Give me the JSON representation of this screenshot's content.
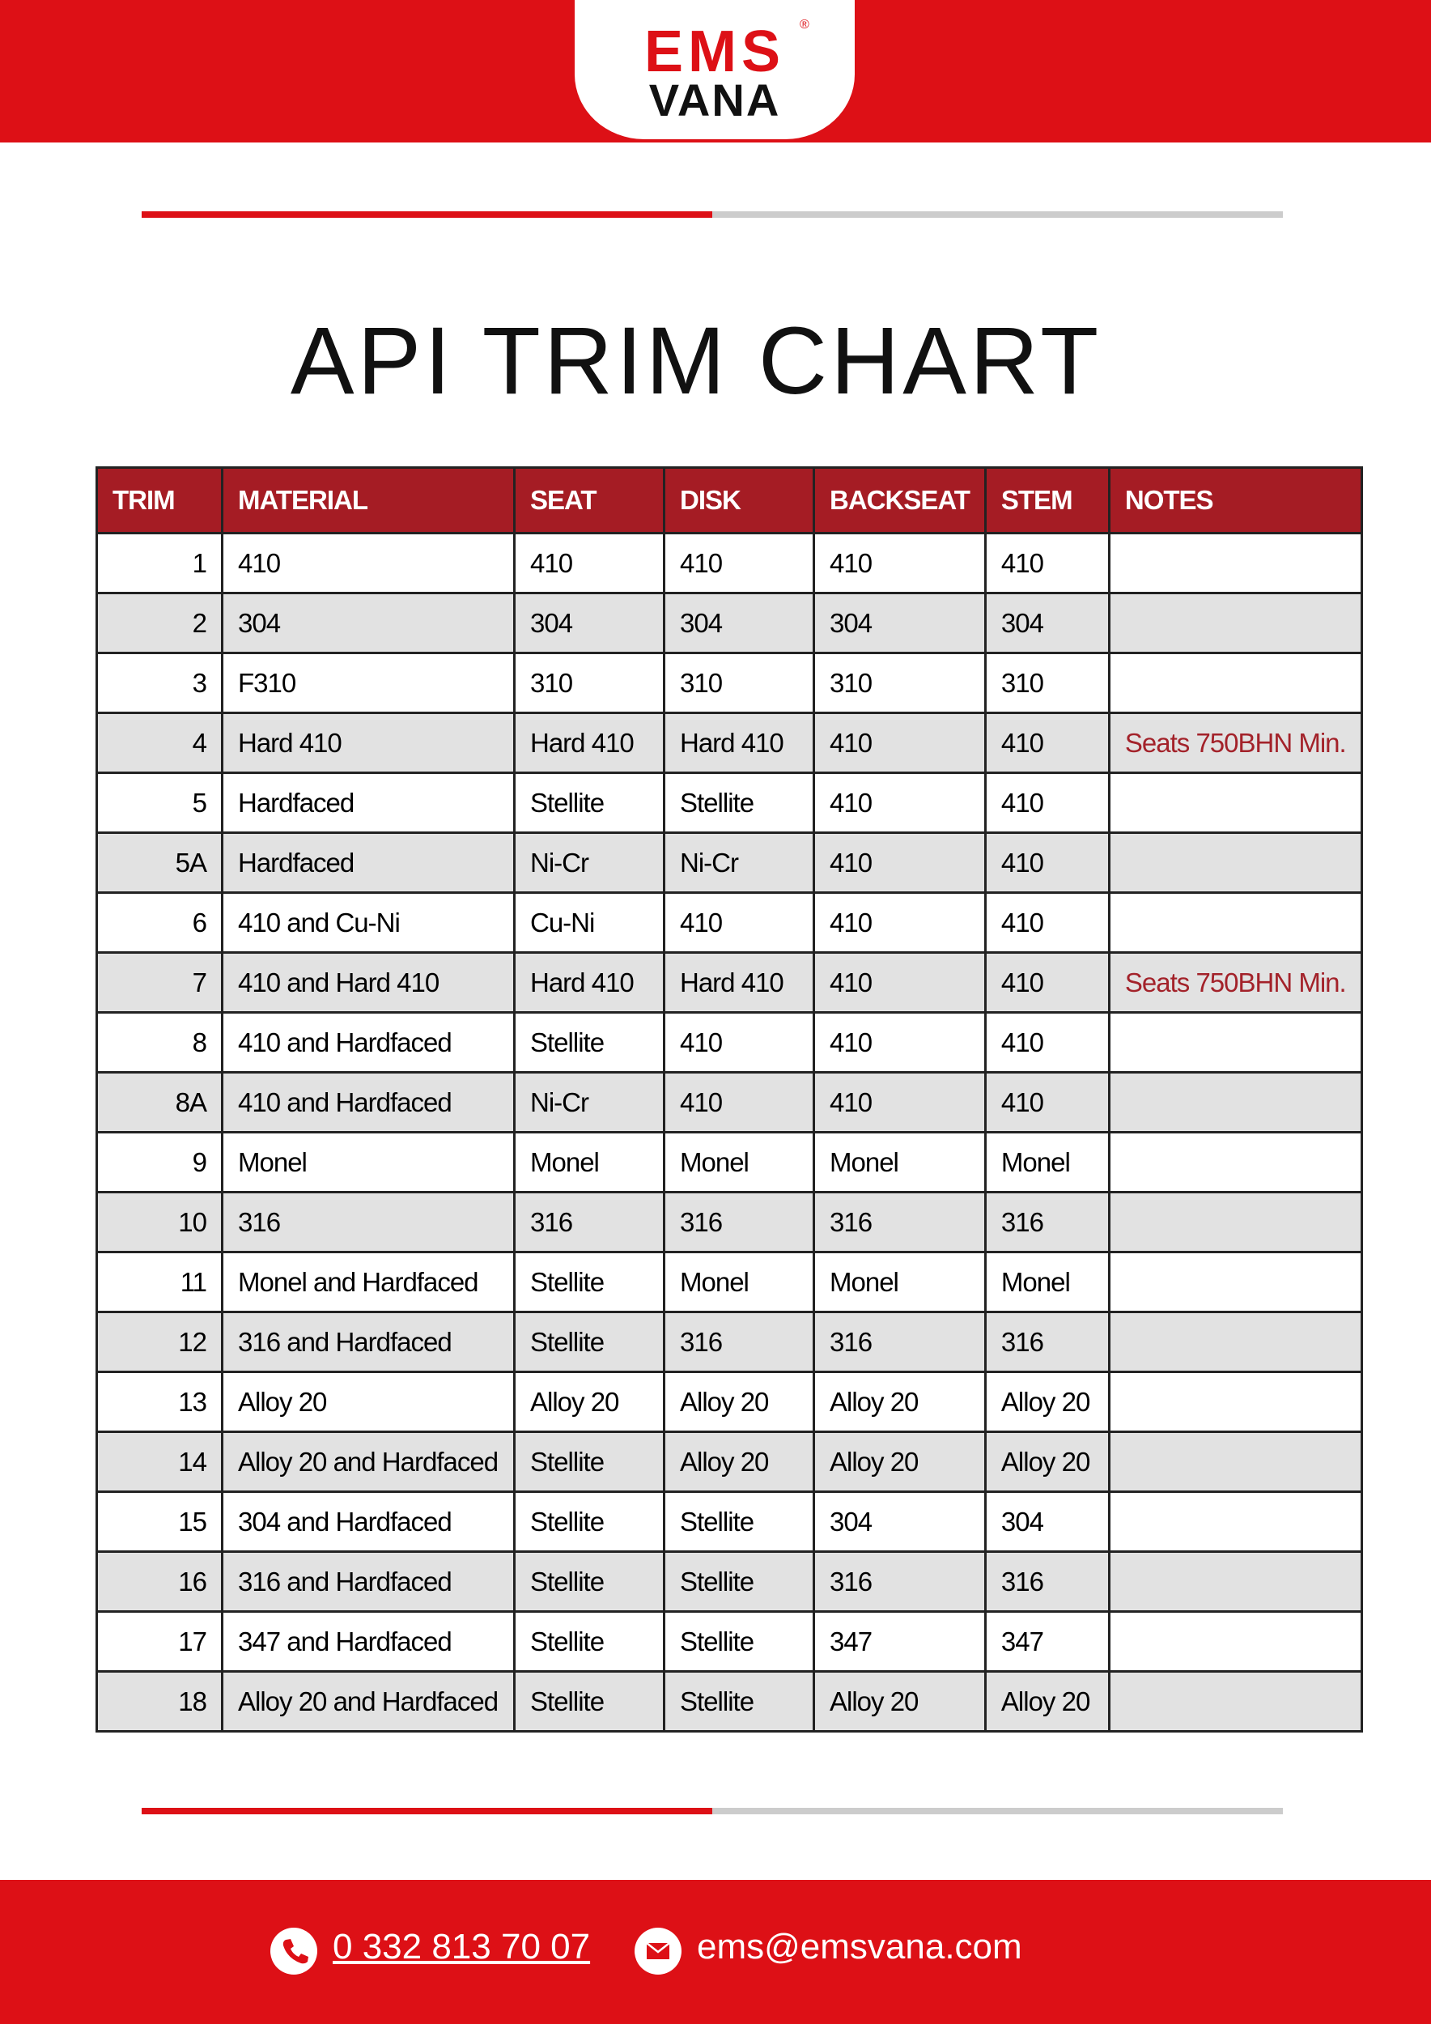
{
  "header": {
    "logo": {
      "top": "EMS",
      "registered": "®",
      "bottom": "VANA"
    }
  },
  "title": "API TRIM CHART",
  "table": {
    "columns": [
      "TRIM",
      "MATERIAL",
      "SEAT",
      "DISK",
      "BACKSEAT",
      "STEM",
      "NOTES"
    ],
    "rows": [
      [
        "1",
        "410",
        "410",
        "410",
        "410",
        "410"
      ],
      [
        "2",
        "304",
        "304",
        "304",
        "304",
        "304"
      ],
      [
        "3",
        "F310",
        "310",
        "310",
        "310",
        "310"
      ],
      [
        "4",
        "Hard 410",
        "Hard 410",
        "Hard 410",
        "410",
        "410",
        "Seats 750BHN Min."
      ],
      [
        "5",
        "Hardfaced",
        "Stellite",
        "Stellite",
        "410",
        "410"
      ],
      [
        "5A",
        "Hardfaced",
        "Ni-Cr",
        "Ni-Cr",
        "410",
        "410"
      ],
      [
        "6",
        "410 and Cu-Ni",
        "Cu-Ni",
        "410",
        "410",
        "410"
      ],
      [
        "7",
        "410 and Hard 410",
        "Hard 410",
        "Hard 410",
        "410",
        "410",
        "Seats 750BHN Min."
      ],
      [
        "8",
        "410 and Hardfaced",
        "Stellite",
        "410",
        "410",
        "410"
      ],
      [
        "8A",
        "410 and Hardfaced",
        "Ni-Cr",
        "410",
        "410",
        "410"
      ],
      [
        "9",
        "Monel",
        "Monel",
        "Monel",
        "Monel",
        "Monel"
      ],
      [
        "10",
        "316",
        "316",
        "316",
        "316",
        "316"
      ],
      [
        "11",
        "Monel and Hardfaced",
        "Stellite",
        "Monel",
        "Monel",
        "Monel"
      ],
      [
        "12",
        "316 and Hardfaced",
        "Stellite",
        "316",
        "316",
        "316"
      ],
      [
        "13",
        "Alloy 20",
        "Alloy 20",
        "Alloy 20",
        "Alloy 20",
        "Alloy 20"
      ],
      [
        "14",
        "Alloy 20 and Hardfaced",
        "Stellite",
        "Alloy 20",
        "Alloy 20",
        "Alloy 20"
      ],
      [
        "15",
        "304 and Hardfaced",
        "Stellite",
        "Stellite",
        "304",
        "304"
      ],
      [
        "16",
        "316 and Hardfaced",
        "Stellite",
        "Stellite",
        "316",
        "316"
      ],
      [
        "17",
        "347 and Hardfaced",
        "Stellite",
        "Stellite",
        "347",
        "347"
      ],
      [
        "18",
        "Alloy 20 and Hardfaced",
        "Stellite",
        "Stellite",
        "Alloy 20",
        "Alloy 20"
      ]
    ]
  },
  "footer": {
    "phone": "0 332 813 70 07",
    "email": "ems@emsvana.com"
  }
}
